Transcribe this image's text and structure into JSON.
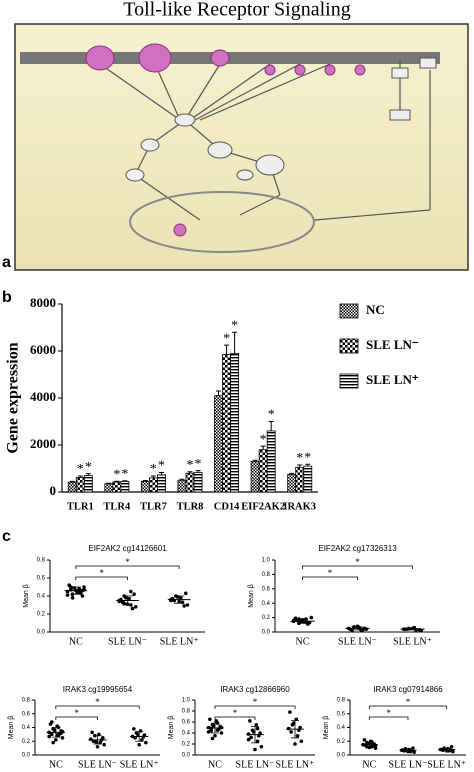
{
  "panels": [
    "a",
    "b",
    "c"
  ],
  "diagram": {
    "title": "Toll-like Receptor Signaling"
  },
  "chart_data": [
    {
      "type": "bar",
      "ylabel": "Gene expression",
      "categories": [
        "TLR1",
        "TLR4",
        "TLR7",
        "TLR8",
        "CD14",
        "EIF2AK2",
        "IRAK3"
      ],
      "ylim": [
        0,
        8000
      ],
      "yticks": [
        0,
        2000,
        4000,
        6000,
        8000
      ],
      "series": [
        {
          "name": "NC",
          "color": "#000000",
          "pattern": "checker-small",
          "values": [
            420,
            350,
            450,
            500,
            4100,
            1300,
            750
          ],
          "errors": [
            30,
            20,
            40,
            40,
            200,
            50,
            40
          ]
        },
        {
          "name": "SLE LN⁻",
          "color": "#000000",
          "pattern": "checker-large",
          "values": [
            620,
            430,
            600,
            800,
            5850,
            1800,
            1050
          ],
          "errors": [
            60,
            30,
            80,
            60,
            400,
            150,
            100
          ],
          "markers": [
            "*",
            "*",
            "*",
            "*",
            "*",
            "*",
            "*"
          ]
        },
        {
          "name": "SLE LN⁺",
          "color": "#000000",
          "pattern": "stripes",
          "values": [
            700,
            450,
            730,
            830,
            5900,
            2600,
            1100
          ],
          "errors": [
            80,
            30,
            100,
            80,
            900,
            400,
            80
          ],
          "markers": [
            "*",
            "*",
            "*",
            "*",
            "*",
            "*",
            "*"
          ]
        }
      ]
    },
    {
      "type": "dotplot",
      "title": "EIF2AK2 cg14126601",
      "ylabel": "Mean β",
      "categories": [
        "NC",
        "SLE LN⁻",
        "SLE LN⁺"
      ],
      "ylim": [
        0,
        0.8
      ],
      "yticks": [
        {
          "value": 0,
          "label": "0.0"
        },
        0.2,
        0.4,
        0.6,
        0.8
      ],
      "color": "#000000",
      "groups": [
        {
          "values": [
            0.45,
            0.48,
            0.42,
            0.5,
            0.44,
            0.47,
            0.4,
            0.46,
            0.52,
            0.43,
            0.49,
            0.41,
            0.45,
            0.38,
            0.47,
            0.44,
            0.5,
            0.46
          ],
          "mean": 0.46,
          "sd": 0.04
        },
        {
          "values": [
            0.35,
            0.3,
            0.4,
            0.28,
            0.37,
            0.33,
            0.42,
            0.31,
            0.36,
            0.26,
            0.38,
            0.34,
            0.45,
            0.32
          ],
          "mean": 0.35,
          "sd": 0.05
        },
        {
          "values": [
            0.36,
            0.33,
            0.4,
            0.3,
            0.38,
            0.35,
            0.43,
            0.34,
            0.37,
            0.29,
            0.39,
            0.35
          ],
          "mean": 0.36,
          "sd": 0.04
        }
      ],
      "comparisons": [
        {
          "text": "*",
          "groups": [
            "NC",
            "SLE LN⁺"
          ]
        },
        {
          "text": "*",
          "groups": [
            "NC",
            "SLE LN⁻"
          ]
        }
      ]
    },
    {
      "type": "dotplot",
      "title": "EIF2AK2 cg17326313",
      "ylabel": "Mean β",
      "categories": [
        "NC",
        "SLE LN⁻",
        "SLE LN⁺"
      ],
      "ylim": [
        0,
        1
      ],
      "yticks": [
        {
          "value": 0,
          "label": "0.0"
        },
        0.2,
        0.4,
        0.6,
        0.8,
        {
          "value": 1,
          "label": "1.0"
        }
      ],
      "color": "#000000",
      "groups": [
        {
          "values": [
            0.15,
            0.18,
            0.12,
            0.2,
            0.14,
            0.16,
            0.13,
            0.17,
            0.19,
            0.11,
            0.15,
            0.16,
            0.14,
            0.18
          ],
          "mean": 0.15,
          "sd": 0.03
        },
        {
          "values": [
            0.05,
            0.03,
            0.07,
            0.04,
            0.06,
            0.02,
            0.05,
            0.08,
            0.04,
            0.03
          ],
          "mean": 0.05,
          "sd": 0.02
        },
        {
          "values": [
            0.04,
            0.03,
            0.05,
            0.02,
            0.06,
            0.04,
            0.03,
            0.05,
            0.04
          ],
          "mean": 0.04,
          "sd": 0.01
        }
      ],
      "comparisons": [
        {
          "text": "*",
          "groups": [
            "NC",
            "SLE LN⁺"
          ]
        },
        {
          "text": "*",
          "groups": [
            "NC",
            "SLE LN⁻"
          ]
        }
      ]
    },
    {
      "type": "dotplot",
      "title": "IRAK3 cg19995654",
      "ylabel": "Mean β",
      "categories": [
        "NC",
        "SLE LN⁻",
        "SLE LN⁺"
      ],
      "ylim": [
        0,
        0.8
      ],
      "yticks": [
        {
          "value": 0,
          "label": "0.0"
        },
        0.2,
        0.4,
        0.6,
        0.8
      ],
      "color": "#000000",
      "groups": [
        {
          "values": [
            0.33,
            0.28,
            0.38,
            0.25,
            0.42,
            0.3,
            0.35,
            0.22,
            0.45,
            0.31,
            0.36,
            0.27,
            0.4,
            0.18,
            0.34,
            0.29,
            0.48,
            0.32
          ],
          "mean": 0.33,
          "sd": 0.07
        },
        {
          "values": [
            0.23,
            0.18,
            0.28,
            0.15,
            0.3,
            0.2,
            0.25,
            0.12,
            0.33,
            0.22,
            0.19
          ],
          "mean": 0.22,
          "sd": 0.06
        },
        {
          "values": [
            0.27,
            0.22,
            0.32,
            0.18,
            0.35,
            0.25,
            0.29,
            0.15,
            0.38,
            0.26,
            0.3
          ],
          "mean": 0.27,
          "sd": 0.07
        }
      ],
      "comparisons": [
        {
          "text": "*",
          "groups": [
            "NC",
            "SLE LN⁺"
          ]
        },
        {
          "text": "*",
          "groups": [
            "NC",
            "SLE LN⁻"
          ]
        }
      ]
    },
    {
      "type": "dotplot",
      "title": "IRAK3 cg12866960",
      "ylabel": "Mean β",
      "categories": [
        "NC",
        "SLE LN⁻",
        "SLE LN⁺"
      ],
      "ylim": [
        0,
        1
      ],
      "yticks": [
        {
          "value": 0,
          "label": "0.0"
        },
        0.2,
        0.4,
        0.6,
        0.8,
        {
          "value": 1,
          "label": "1.0"
        }
      ],
      "color": "#000000",
      "groups": [
        {
          "values": [
            0.5,
            0.45,
            0.55,
            0.4,
            0.6,
            0.48,
            0.52,
            0.35,
            0.65,
            0.47,
            0.53,
            0.42,
            0.58,
            0.3,
            0.5,
            0.62,
            0.44
          ],
          "mean": 0.49,
          "sd": 0.09
        },
        {
          "values": [
            0.38,
            0.25,
            0.45,
            0.15,
            0.55,
            0.32,
            0.4,
            0.1,
            0.62,
            0.35,
            0.42,
            0.28,
            0.48
          ],
          "mean": 0.37,
          "sd": 0.15
        },
        {
          "values": [
            0.48,
            0.35,
            0.55,
            0.25,
            0.65,
            0.42,
            0.5,
            0.2,
            0.78,
            0.45,
            0.58
          ],
          "mean": 0.47,
          "sd": 0.16
        }
      ],
      "comparisons": [
        {
          "text": "*",
          "groups": [
            "NC",
            "SLE LN⁺"
          ]
        },
        {
          "text": "*",
          "groups": [
            "NC",
            "SLE LN⁻"
          ]
        }
      ]
    },
    {
      "type": "dotplot",
      "title": "IRAK3 cg07914866",
      "ylabel": "Mean β",
      "categories": [
        "NC",
        "SLE LN⁻",
        "SLE LN⁺"
      ],
      "ylim": [
        0,
        0.8
      ],
      "yticks": [
        {
          "value": 0,
          "label": "0.0"
        },
        0.2,
        0.4,
        0.6,
        0.8
      ],
      "color": "#000000",
      "groups": [
        {
          "values": [
            0.15,
            0.12,
            0.18,
            0.1,
            0.2,
            0.14,
            0.16,
            0.11,
            0.22,
            0.13,
            0.17,
            0.15,
            0.19,
            0.12,
            0.14,
            0.16
          ],
          "mean": 0.15,
          "sd": 0.03
        },
        {
          "values": [
            0.07,
            0.05,
            0.09,
            0.04,
            0.08,
            0.06,
            0.1,
            0.05,
            0.07,
            0.06
          ],
          "mean": 0.07,
          "sd": 0.02
        },
        {
          "values": [
            0.08,
            0.06,
            0.1,
            0.05,
            0.09,
            0.07,
            0.12,
            0.06,
            0.08,
            0.07
          ],
          "mean": 0.08,
          "sd": 0.02
        }
      ],
      "comparisons": [
        {
          "text": "*",
          "groups": [
            "NC",
            "SLE LN⁺"
          ]
        },
        {
          "text": "*",
          "groups": [
            "NC",
            "SLE LN⁻"
          ]
        }
      ]
    }
  ]
}
